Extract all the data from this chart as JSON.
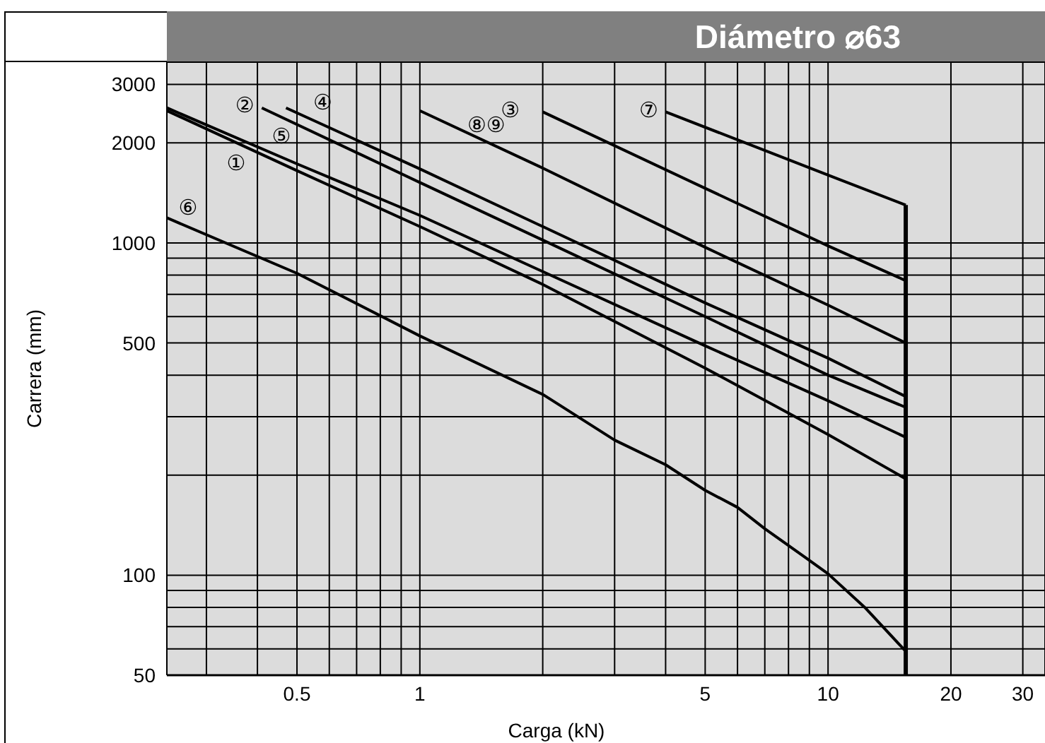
{
  "chart_data": {
    "type": "line",
    "title": "Diámetro ⌀63",
    "xlabel": "Carga  (kN)",
    "ylabel": "Carrera (mm)",
    "log": "xy",
    "grid": true,
    "marker": "none",
    "line_style": "solid",
    "xlim": [
      0.24,
      34
    ],
    "ylim": [
      50,
      3500
    ],
    "xticks": [
      {
        "value": 0.3,
        "label": null
      },
      {
        "value": 0.4,
        "label": null
      },
      0.5,
      {
        "value": 0.6,
        "label": null
      },
      {
        "value": 0.7,
        "label": null
      },
      {
        "value": 0.8,
        "label": null
      },
      {
        "value": 0.9,
        "label": null
      },
      1,
      {
        "value": 2,
        "label": null
      },
      {
        "value": 3,
        "label": null
      },
      {
        "value": 4,
        "label": null
      },
      5,
      {
        "value": 6,
        "label": null
      },
      {
        "value": 7,
        "label": null
      },
      {
        "value": 8,
        "label": null
      },
      {
        "value": 9,
        "label": null
      },
      10,
      20,
      30
    ],
    "yticks": [
      50,
      {
        "value": 60,
        "label": null
      },
      {
        "value": 70,
        "label": null
      },
      {
        "value": 80,
        "label": null
      },
      {
        "value": 90,
        "label": null
      },
      100,
      {
        "value": 200,
        "label": null
      },
      {
        "value": 300,
        "label": null
      },
      {
        "value": 400,
        "label": null
      },
      500,
      {
        "value": 600,
        "label": null
      },
      {
        "value": 700,
        "label": null
      },
      {
        "value": 800,
        "label": null
      },
      {
        "value": 900,
        "label": null
      },
      1000,
      2000,
      3000
    ],
    "series": [
      {
        "name": "①",
        "color": "#000000",
        "x": [
          0.24,
          0.5,
          1,
          2,
          5,
          10,
          15.5
        ],
        "values": [
          2500,
          1650,
          1120,
          750,
          420,
          265,
          195
        ]
      },
      {
        "name": "②",
        "color": "#000000",
        "x": [
          0.41,
          1,
          2,
          5,
          10,
          15.5
        ],
        "values": [
          2550,
          1520,
          1020,
          600,
          400,
          320
        ]
      },
      {
        "name": "③",
        "color": "#000000",
        "x": [
          2,
          5,
          10,
          15.5
        ],
        "values": [
          2480,
          1460,
          980,
          770
        ]
      },
      {
        "name": "④",
        "color": "#000000",
        "x": [
          0.47,
          1,
          2,
          5,
          10,
          15.5
        ],
        "values": [
          2550,
          1670,
          1120,
          660,
          450,
          345
        ]
      },
      {
        "name": "⑤",
        "color": "#000000",
        "x": [
          0.24,
          0.5,
          1,
          2,
          5,
          10,
          15.5
        ],
        "values": [
          2550,
          1730,
          1210,
          820,
          490,
          335,
          260
        ]
      },
      {
        "name": "⑥",
        "color": "#000000",
        "x": [
          0.24,
          0.5,
          1,
          2,
          3,
          4,
          5,
          6,
          7,
          8.8,
          10,
          12.3,
          15.5
        ],
        "values": [
          1190,
          810,
          525,
          350,
          255,
          215,
          180,
          160,
          138,
          113,
          101,
          80,
          59
        ]
      },
      {
        "name": "⑦",
        "color": "#000000",
        "x": [
          4,
          10,
          15.5
        ],
        "values": [
          2480,
          1600,
          1300
        ]
      },
      {
        "name": "⑧⑨",
        "color": "#000000",
        "x": [
          1,
          2,
          5,
          10,
          15.5
        ],
        "values": [
          2500,
          1680,
          970,
          650,
          500
        ]
      },
      {
        "color": "#000000",
        "x": [
          15.5,
          15.5
        ],
        "values": [
          1300,
          50
        ]
      }
    ]
  }
}
